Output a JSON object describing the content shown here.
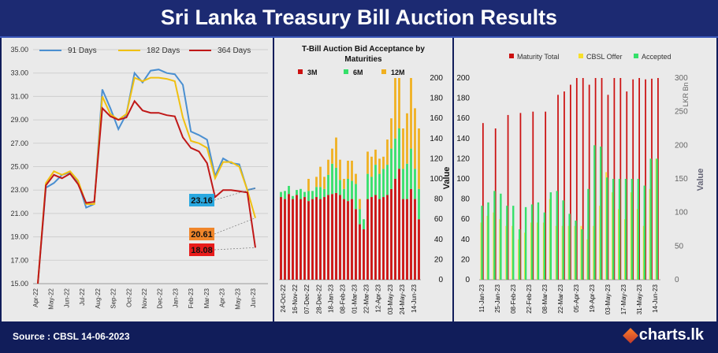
{
  "header": {
    "title": "Sri Lanka Treasury Bill Auction Results"
  },
  "footer": {
    "source": "Source : CBSL  14-06-2023",
    "brand": "charts.lk"
  },
  "colors": {
    "t91": "#4a8fd1",
    "t182": "#f0c010",
    "t364": "#c01818",
    "red": "#cc1010",
    "green": "#35e06a",
    "yellow": "#f7e02a",
    "orange": "#f0b020"
  },
  "chart_data": [
    {
      "type": "line",
      "title": "",
      "series": [
        {
          "name": "91 Days",
          "values": [
            15.0,
            23.2,
            23.6,
            24.3,
            24.5,
            23.7,
            21.5,
            21.8,
            31.6,
            30.0,
            28.2,
            29.5,
            33.0,
            32.2,
            33.2,
            33.3,
            33.0,
            32.9,
            32.0,
            28.0,
            27.7,
            27.3,
            24.2,
            25.7,
            25.3,
            25.2,
            23.0,
            23.16
          ]
        },
        {
          "name": "182 Days",
          "values": [
            15.0,
            23.6,
            24.6,
            24.3,
            24.6,
            23.8,
            21.8,
            21.8,
            31.0,
            29.5,
            29.0,
            29.5,
            32.6,
            32.3,
            32.6,
            32.6,
            32.5,
            32.3,
            29.2,
            27.2,
            27.0,
            26.6,
            24.0,
            25.4,
            25.4,
            25.0,
            23.0,
            20.61
          ]
        },
        {
          "name": "364 Days",
          "values": [
            15.0,
            23.4,
            24.3,
            24.0,
            24.4,
            23.5,
            21.9,
            22.0,
            30.0,
            29.3,
            29.0,
            29.2,
            30.6,
            29.8,
            29.6,
            29.6,
            29.4,
            29.3,
            27.5,
            26.6,
            26.3,
            25.3,
            22.4,
            23.0,
            23.0,
            22.9,
            22.8,
            18.08
          ]
        }
      ],
      "x_labels": [
        "Apr-22",
        "May-22",
        "Jun-22",
        "Jul-22",
        "Aug-22",
        "Sep-22",
        "Oct-22",
        "Nov-22",
        "Dec-22",
        "Jan-23",
        "Feb-23",
        "Mar-23",
        "Apr-23",
        "May-23",
        "Jun-23"
      ],
      "y_ticks": [
        "15.00",
        "17.00",
        "19.00",
        "21.00",
        "23.00",
        "25.00",
        "27.00",
        "29.00",
        "31.00",
        "33.00",
        "35.00"
      ],
      "ylim": [
        15,
        35
      ],
      "annotations": [
        "23.16",
        "20.61",
        "18.08"
      ]
    },
    {
      "type": "bar",
      "title": "T-Bill Auction Bid Acceptance by Maturities",
      "ylabel": "Value",
      "ylim": [
        0,
        200
      ],
      "y_ticks": [
        "0",
        "20",
        "40",
        "60",
        "80",
        "100",
        "120",
        "140",
        "160",
        "180",
        "200"
      ],
      "legend": [
        "3M",
        "6M",
        "12M"
      ],
      "x_labels": [
        "24-Oct-22",
        "16-Nov-22",
        "07-Dec-22",
        "28-Dec-22",
        "18-Jan-23",
        "08-Feb-23",
        "01-Mar-23",
        "22-Mar-23",
        "12-Apr-23",
        "03-May-23",
        "24-May-23",
        "14-Jun-23"
      ],
      "series": [
        {
          "name": "3M",
          "values": [
            82,
            80,
            85,
            80,
            84,
            80,
            82,
            78,
            80,
            82,
            80,
            82,
            84,
            85,
            86,
            84,
            80,
            78,
            80,
            70,
            55,
            50,
            80,
            82,
            84,
            80,
            82,
            84,
            90,
            100,
            110,
            80,
            80,
            90,
            80,
            60
          ]
        },
        {
          "name": "6M",
          "values": [
            5,
            8,
            8,
            3,
            5,
            10,
            5,
            10,
            8,
            10,
            12,
            8,
            20,
            30,
            25,
            15,
            10,
            22,
            18,
            25,
            15,
            10,
            25,
            20,
            30,
            25,
            28,
            30,
            40,
            40,
            40,
            30,
            35,
            40,
            30,
            30
          ]
        },
        {
          "name": "12M",
          "values": [
            0,
            0,
            0,
            0,
            0,
            0,
            0,
            12,
            0,
            10,
            20,
            12,
            15,
            15,
            30,
            20,
            10,
            18,
            20,
            10,
            10,
            0,
            22,
            20,
            15,
            15,
            12,
            25,
            30,
            60,
            50,
            40,
            50,
            70,
            60,
            60
          ]
        }
      ]
    },
    {
      "type": "bar",
      "title": "",
      "ylabel": "LKR Bn",
      "y2label": "Value",
      "ylim": [
        0,
        200
      ],
      "y2lim": [
        0,
        300
      ],
      "y_ticks": [
        "0",
        "20",
        "40",
        "60",
        "80",
        "100",
        "120",
        "140",
        "160",
        "180",
        "200"
      ],
      "y2_ticks": [
        "0",
        "50",
        "100",
        "150",
        "200",
        "250",
        "300"
      ],
      "legend": [
        "Maturity Total",
        "CBSL Offer",
        "Accepted"
      ],
      "x_labels": [
        "11-Jan-23",
        "25-Jan-23",
        "08-Feb-23",
        "22-Feb-23",
        "08-Mar-23",
        "22-Mar-23",
        "05-Apr-23",
        "19-Apr-23",
        "03-May-23",
        "17-May-23",
        "31-May-23",
        "14-Jun-23"
      ],
      "series": [
        {
          "name": "Maturity Total",
          "values": [
            233,
            0,
            225,
            0,
            245,
            0,
            248,
            0,
            250,
            0,
            250,
            0,
            275,
            280,
            290,
            300,
            300,
            290,
            300,
            300,
            275,
            300,
            300,
            280,
            298,
            300,
            298,
            299,
            300
          ]
        },
        {
          "name": "CBSL Offer",
          "values": [
            85,
            95,
            100,
            90,
            80,
            80,
            60,
            70,
            85,
            85,
            85,
            120,
            80,
            80,
            80,
            80,
            80,
            60,
            80,
            110,
            160,
            130,
            105,
            90,
            130,
            105,
            80,
            135,
            180
          ]
        },
        {
          "name": "Accepted",
          "values": [
            110,
            115,
            132,
            128,
            110,
            110,
            75,
            108,
            112,
            115,
            100,
            130,
            132,
            118,
            98,
            88,
            75,
            135,
            200,
            198,
            152,
            150,
            150,
            150,
            150,
            150,
            140,
            180,
            180
          ]
        }
      ]
    }
  ]
}
